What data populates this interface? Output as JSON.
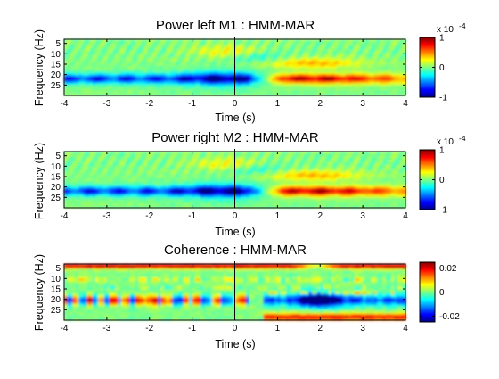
{
  "chart_data": [
    {
      "type": "heatmap",
      "title": "Power left M1 : HMM-MAR",
      "xlabel": "Time (s)",
      "ylabel": "Frequency (Hz)",
      "xlim": [
        -4,
        4
      ],
      "ylim": [
        3,
        30
      ],
      "xticks": [
        -4,
        -3,
        -2,
        -1,
        0,
        1,
        2,
        3,
        4
      ],
      "xtick_labels": [
        "-4",
        "-3",
        "-2",
        "-1",
        "0",
        "1",
        "2",
        "3",
        "4"
      ],
      "yticks": [
        5,
        10,
        15,
        20,
        25
      ],
      "ytick_labels": [
        "5",
        "10",
        "15",
        "20",
        "25"
      ],
      "colorbar": {
        "min": -1,
        "max": 1,
        "ticks": [
          -1,
          0,
          1
        ],
        "tick_labels": [
          "-1",
          "0",
          "1"
        ],
        "exponent_label": "x 10",
        "exponent_power": "-4"
      },
      "colormap": "jet",
      "features": [
        {
          "f": 22,
          "t0": -4,
          "t1": 0.3,
          "value": -0.85,
          "note": "beta desynchronisation band"
        },
        {
          "f": 22,
          "t0": 0.7,
          "t1": 4,
          "value": 0.95,
          "note": "post-movement beta rebound"
        },
        {
          "f": 14,
          "t0": 1.0,
          "t1": 2.7,
          "value": 0.5
        },
        {
          "f": 9,
          "t0": -0.6,
          "t1": 0.4,
          "value": 0.45
        }
      ]
    },
    {
      "type": "heatmap",
      "title": "Power right M2 : HMM-MAR",
      "xlabel": "Time (s)",
      "ylabel": "Frequency (Hz)",
      "xlim": [
        -4,
        4
      ],
      "ylim": [
        3,
        30
      ],
      "xticks": [
        -4,
        -3,
        -2,
        -1,
        0,
        1,
        2,
        3,
        4
      ],
      "xtick_labels": [
        "-4",
        "-3",
        "-2",
        "-1",
        "0",
        "1",
        "2",
        "3",
        "4"
      ],
      "yticks": [
        5,
        10,
        15,
        20,
        25
      ],
      "ytick_labels": [
        "5",
        "10",
        "15",
        "20",
        "25"
      ],
      "colorbar": {
        "min": -1,
        "max": 1,
        "ticks": [
          -1,
          0,
          1
        ],
        "tick_labels": [
          "-1",
          "0",
          "1"
        ],
        "exponent_label": "x 10",
        "exponent_power": "-4"
      },
      "colormap": "jet",
      "features": [
        {
          "f": 22,
          "t0": -4,
          "t1": 0.3,
          "value": -0.9
        },
        {
          "f": 22,
          "t0": 0.7,
          "t1": 4,
          "value": 0.95
        },
        {
          "f": 14,
          "t0": 1.0,
          "t1": 2.7,
          "value": 0.5
        },
        {
          "f": 9,
          "t0": -0.6,
          "t1": 0.4,
          "value": 0.4
        }
      ]
    },
    {
      "type": "heatmap",
      "title": "Coherence : HMM-MAR",
      "xlabel": "Time (s)",
      "ylabel": "Frequency (Hz)",
      "xlim": [
        -4,
        4
      ],
      "ylim": [
        3,
        30
      ],
      "xticks": [
        -4,
        -3,
        -2,
        -1,
        0,
        1,
        2,
        3,
        4
      ],
      "xtick_labels": [
        "-4",
        "-3",
        "-2",
        "-1",
        "0",
        "1",
        "2",
        "3",
        "4"
      ],
      "yticks": [
        5,
        10,
        15,
        20,
        25
      ],
      "ytick_labels": [
        "5",
        "10",
        "15",
        "20",
        "25"
      ],
      "colorbar": {
        "min": -0.025,
        "max": 0.025,
        "ticks": [
          -0.02,
          0,
          0.02
        ],
        "tick_labels": [
          "-0.02",
          "0",
          "0.02"
        ]
      },
      "colormap": "jet",
      "features": [
        {
          "f": 4,
          "t0": -4,
          "t1": 4,
          "value": 0.02,
          "note": "strong positive band near 4-5 Hz"
        },
        {
          "f": 20,
          "t0": -4,
          "t1": 0.3,
          "value": 0.012,
          "note": "alternating red/blue stripes"
        },
        {
          "f": 20,
          "t0": 0.7,
          "t1": 4,
          "value": -0.02
        },
        {
          "f": 28,
          "t0": 0.7,
          "t1": 4,
          "value": 0.02
        }
      ]
    }
  ]
}
